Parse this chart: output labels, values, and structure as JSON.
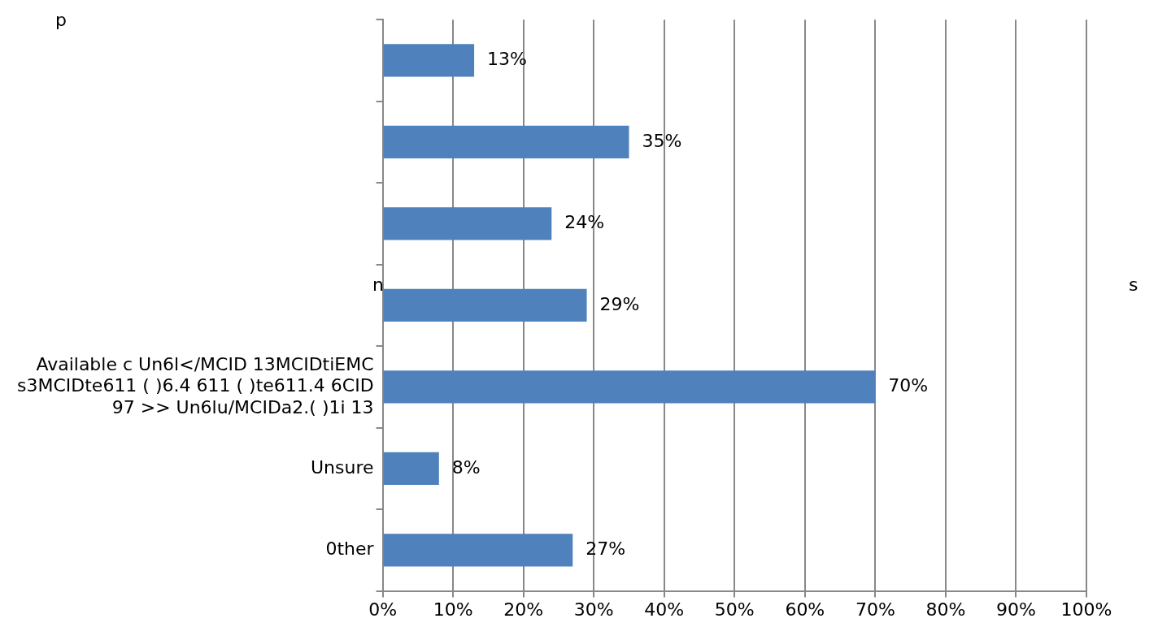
{
  "chart_data": {
    "type": "bar",
    "orientation": "horizontal",
    "categories": [
      null,
      null,
      null,
      null,
      "Available c Un6l</MCID 13MCIDtiEMC s3MCIDte611 ( )6.4 611 ( )te611.4 6CID 97 >> Un6lu/MCIDa2.( )1i 13",
      "Unsure",
      "0ther"
    ],
    "values": [
      13,
      35,
      24,
      29,
      70,
      8,
      27
    ],
    "value_labels": [
      "13%",
      "35%",
      "24%",
      "29%",
      "70%",
      "8%",
      "27%"
    ],
    "color": "#4f81bd",
    "xlim": [
      0,
      100
    ],
    "xticks": [
      {
        "value": 0,
        "label": "0%"
      },
      {
        "value": 10,
        "label": "10%"
      },
      {
        "value": 20,
        "label": "20%"
      },
      {
        "value": 30,
        "label": "30%"
      },
      {
        "value": 40,
        "label": "40%"
      },
      {
        "value": 50,
        "label": "50%"
      },
      {
        "value": 60,
        "label": "60%"
      },
      {
        "value": 70,
        "label": "70%"
      },
      {
        "value": 80,
        "label": "80%"
      },
      {
        "value": 90,
        "label": "90%"
      },
      {
        "value": 100,
        "label": "100%"
      }
    ],
    "grid": "x",
    "legend": false,
    "annotations": [
      "p",
      "n",
      "s"
    ]
  }
}
